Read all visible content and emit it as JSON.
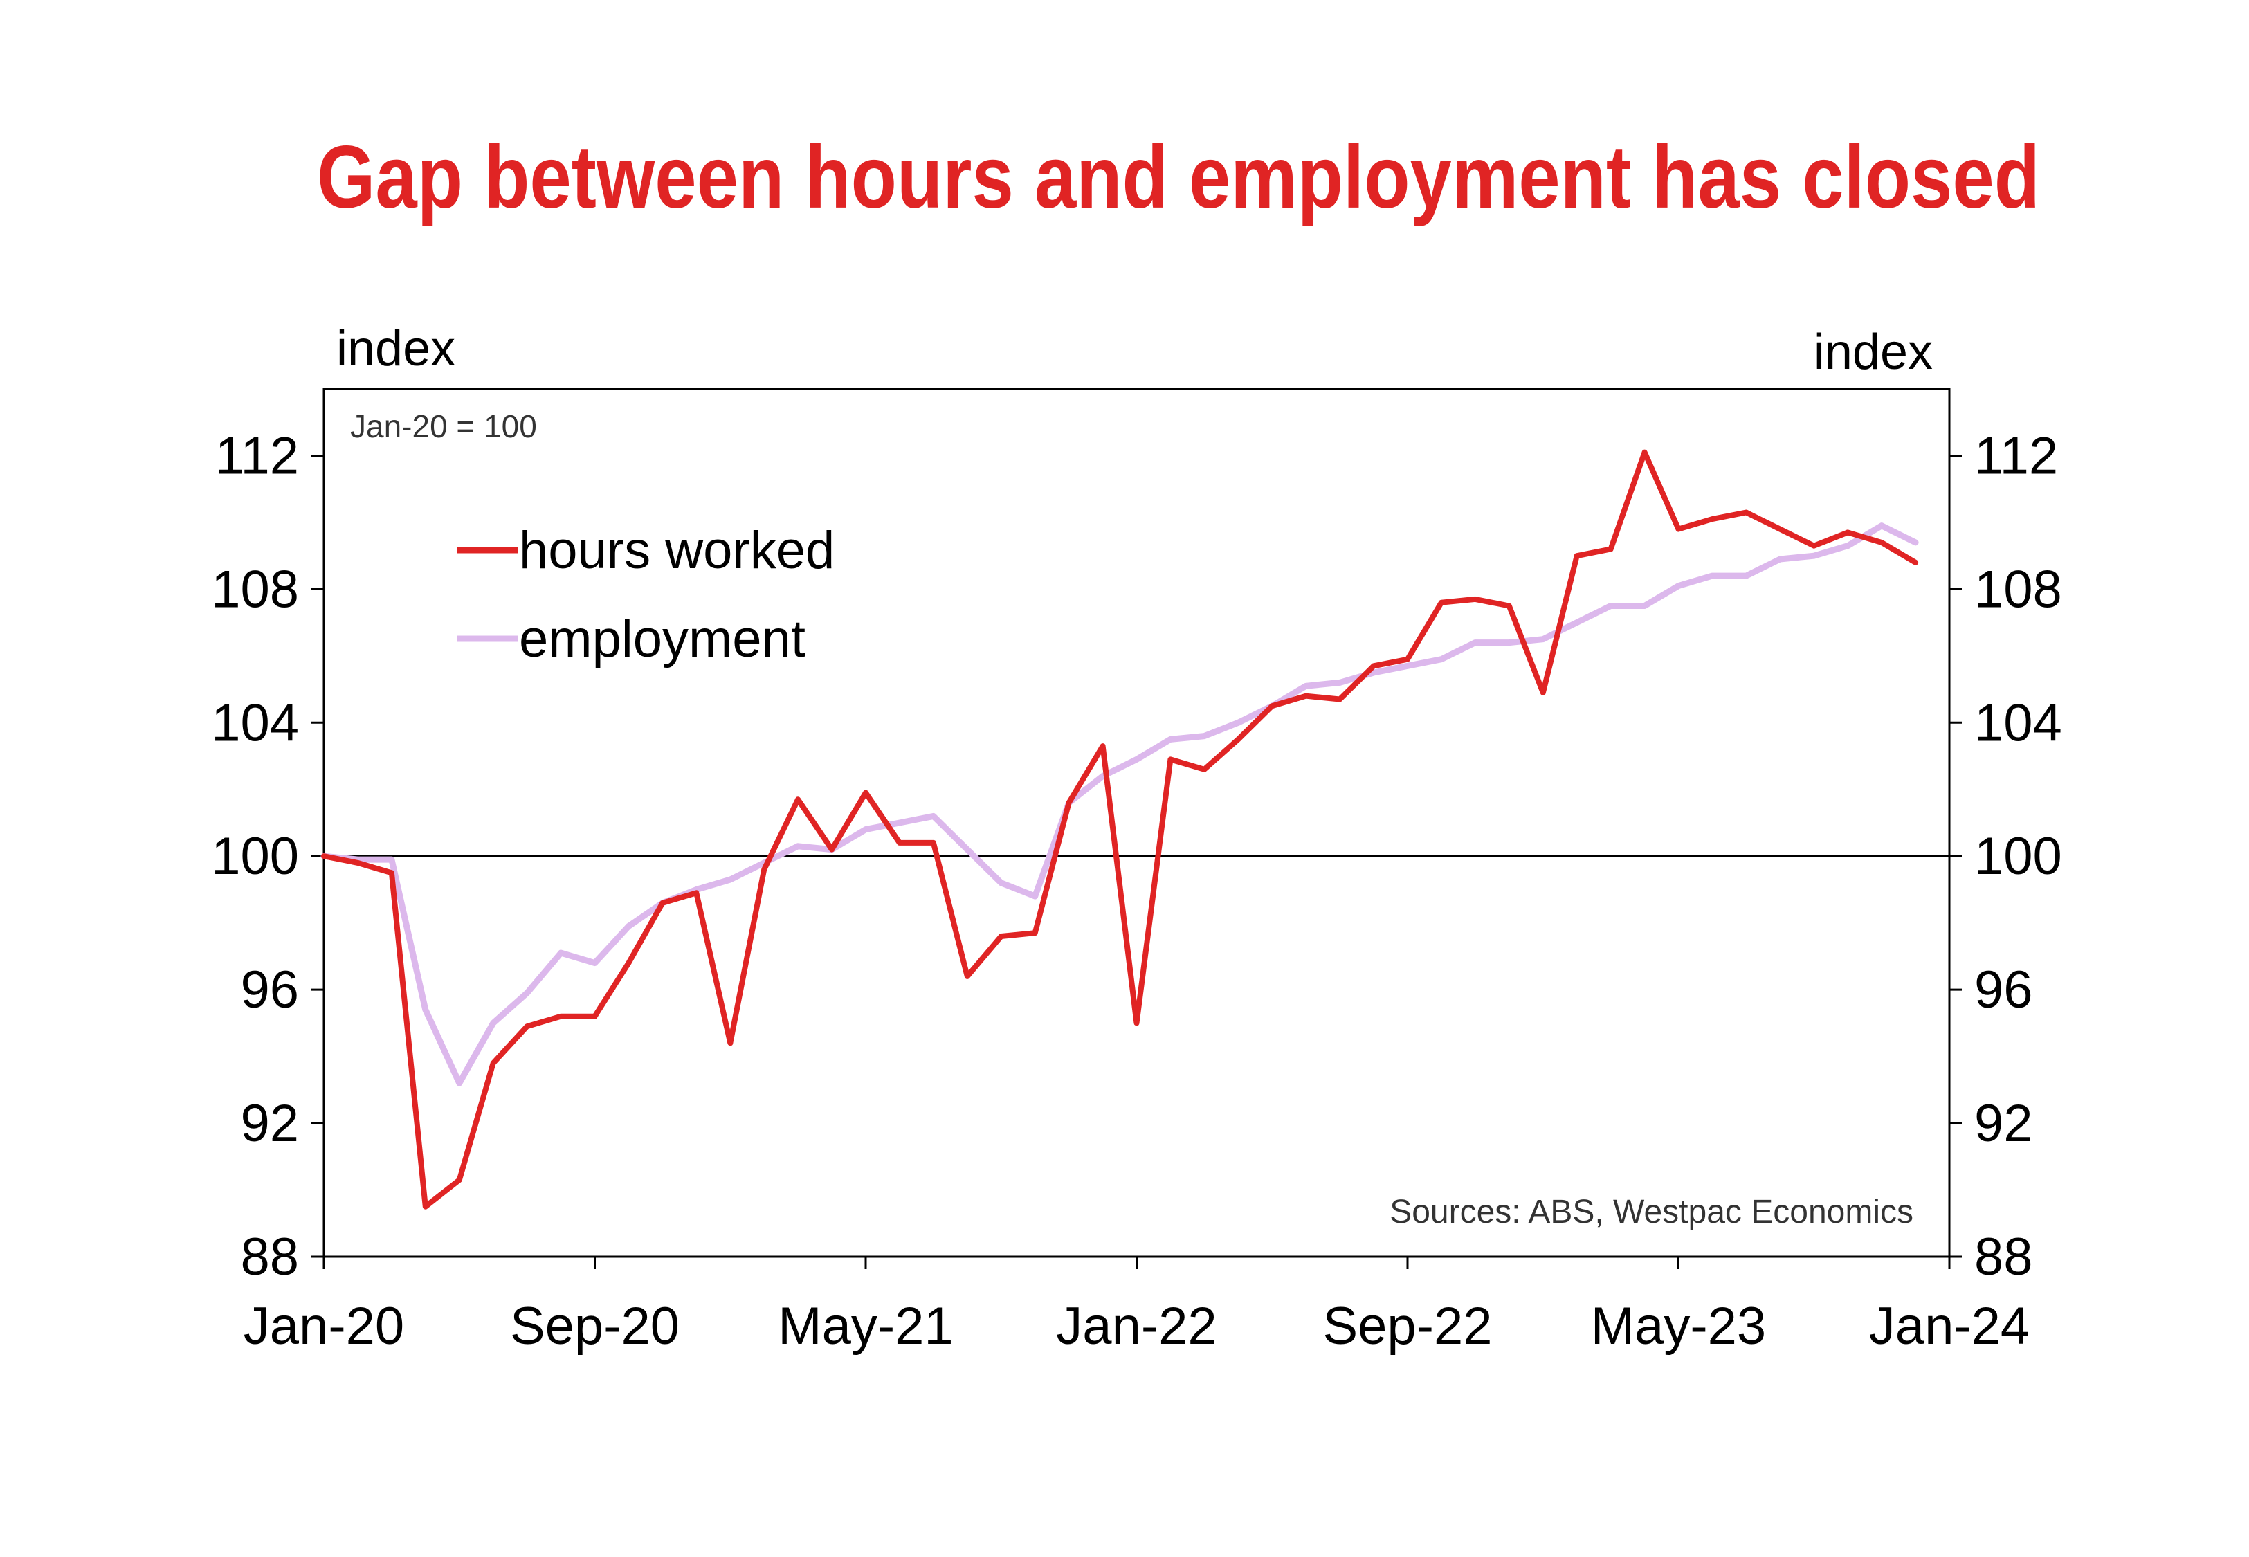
{
  "chart_data": {
    "type": "line",
    "title": "Gap between hours and employment has closed",
    "annotation_base": "Jan-20 = 100",
    "source": "Sources: ABS, Westpac Economics",
    "ylabel_left": "index",
    "ylabel_right": "index",
    "ylim": [
      88,
      114
    ],
    "yticks": [
      "88",
      "92",
      "96",
      "100",
      "104",
      "108",
      "112"
    ],
    "xticks": [
      "Jan-20",
      "Sep-20",
      "May-21",
      "Jan-22",
      "Sep-22",
      "May-23",
      "Jan-24"
    ],
    "x_start": "Jan-20",
    "x_end": "Jan-24",
    "reference_line": 100,
    "legend_position": "top-left",
    "series": [
      {
        "name": "hours worked",
        "color": "#e02424",
        "values": [
          100,
          99.8,
          99.5,
          89.5,
          90.3,
          93.8,
          94.9,
          95.2,
          95.2,
          96.8,
          98.6,
          98.9,
          94.4,
          99.6,
          101.7,
          100.2,
          101.9,
          100.4,
          100.4,
          96.4,
          97.6,
          97.7,
          101.6,
          103.3,
          95.0,
          102.9,
          102.6,
          103.5,
          104.5,
          104.8,
          104.7,
          105.7,
          105.9,
          107.6,
          107.7,
          107.5,
          104.9,
          109.0,
          109.2,
          112.1,
          109.8,
          110.1,
          110.3,
          109.8,
          109.3,
          109.7,
          109.4,
          108.8
        ]
      },
      {
        "name": "employment",
        "color": "#dcb8ec",
        "values": [
          100,
          99.9,
          99.9,
          95.4,
          93.2,
          95.0,
          95.9,
          97.1,
          96.8,
          97.9,
          98.6,
          99.0,
          99.3,
          99.8,
          100.3,
          100.2,
          100.8,
          101.0,
          101.2,
          100.2,
          99.2,
          98.8,
          101.6,
          102.4,
          102.9,
          103.5,
          103.6,
          104.0,
          104.5,
          105.1,
          105.2,
          105.5,
          105.7,
          105.9,
          106.4,
          106.4,
          106.5,
          107.0,
          107.5,
          107.5,
          108.1,
          108.4,
          108.4,
          108.9,
          109.0,
          109.3,
          109.9,
          109.4
        ]
      }
    ]
  }
}
